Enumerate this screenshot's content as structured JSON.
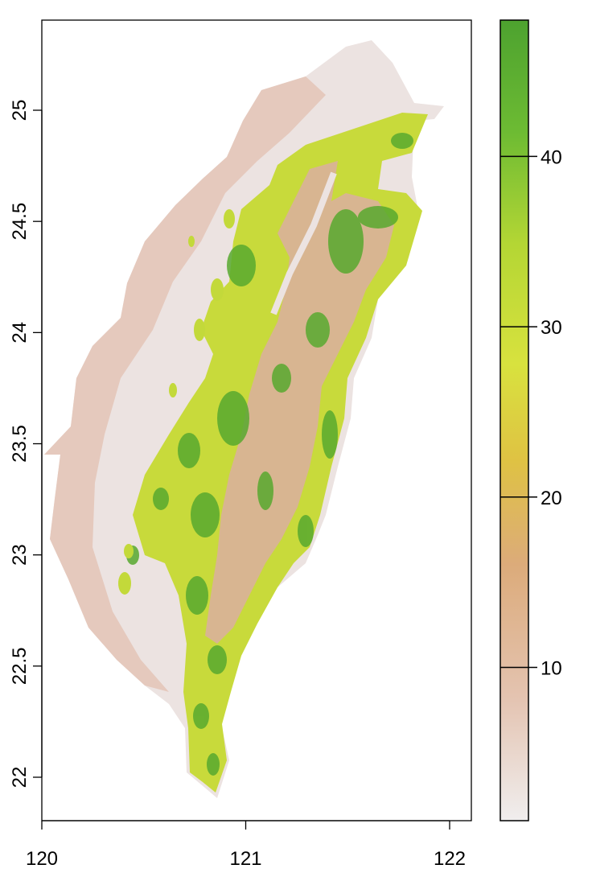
{
  "map": {
    "type": "raster",
    "x_axis": {
      "ticks": [
        120,
        121,
        122
      ],
      "labels": [
        "120",
        "121",
        "122"
      ],
      "range": [
        120,
        122.1
      ]
    },
    "y_axis": {
      "ticks": [
        22,
        22.5,
        23,
        23.5,
        24,
        24.5,
        25
      ],
      "labels": [
        "22",
        "22.5",
        "23",
        "23.5",
        "24",
        "24.5",
        "25"
      ],
      "range": [
        21.82,
        25.42
      ]
    },
    "legend": {
      "position": "right",
      "range": [
        1,
        48
      ],
      "ticks": [
        10,
        20,
        30,
        40
      ],
      "labels": [
        "10",
        "20",
        "30",
        "40"
      ],
      "color_stops": [
        "#f0eeee",
        "#e4c4b2",
        "#dcab7a",
        "#dfc243",
        "#d8e23e",
        "#b4d634",
        "#6dbb33",
        "#4da22f"
      ]
    },
    "colors": {
      "lowland": "#e8cfc3",
      "plain": "#efe9e8",
      "foothill": "#c7db3a",
      "highland": "#d9b38f",
      "forest": "#59a930"
    }
  }
}
